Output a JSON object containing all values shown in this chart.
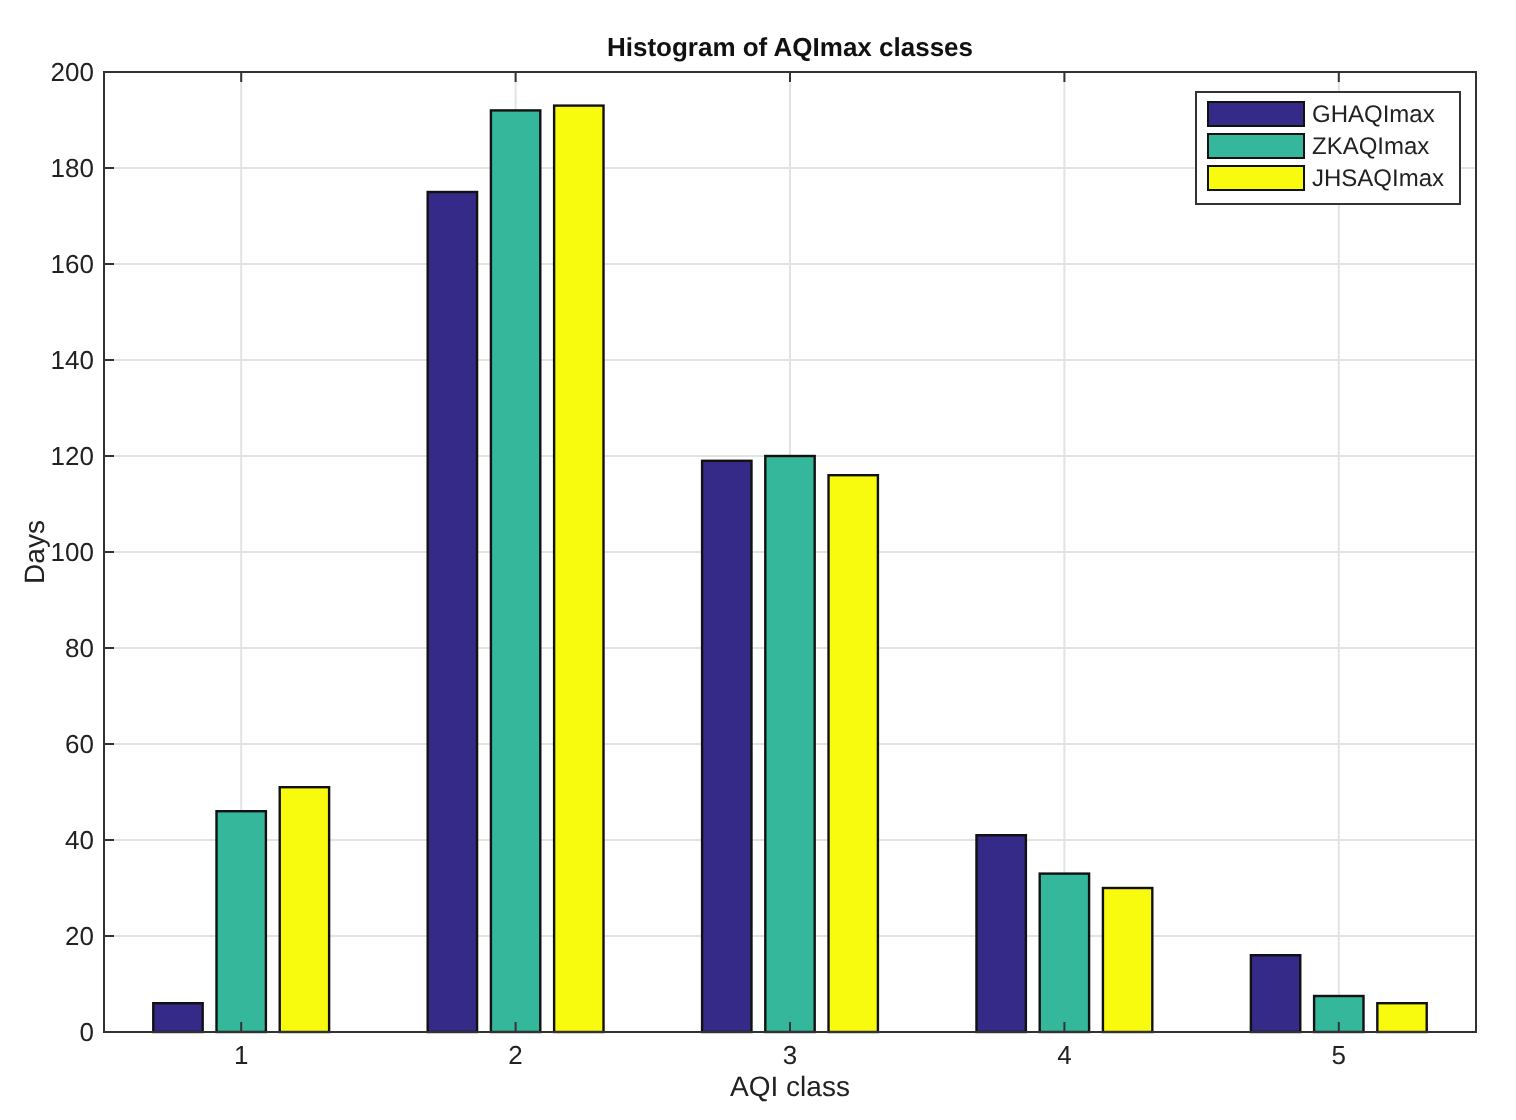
{
  "chart_data": {
    "type": "bar",
    "title": "Histogram of AQImax classes",
    "xlabel": "AQI class",
    "ylabel": "Days",
    "categories": [
      "1",
      "2",
      "3",
      "4",
      "5"
    ],
    "series": [
      {
        "name": "GHAQImax",
        "color": "#352a87",
        "values": [
          6,
          175,
          119,
          41,
          16
        ]
      },
      {
        "name": "ZKAQImax",
        "color": "#35b79c",
        "values": [
          46,
          192,
          120,
          33,
          7.5
        ]
      },
      {
        "name": "JHSAQImax",
        "color": "#f9fb0e",
        "values": [
          51,
          193,
          116,
          30,
          6
        ]
      }
    ],
    "ylim": [
      0,
      200
    ],
    "yticks": [
      0,
      20,
      40,
      60,
      80,
      100,
      120,
      140,
      160,
      180,
      200
    ],
    "grid": true,
    "legend": "top right"
  }
}
